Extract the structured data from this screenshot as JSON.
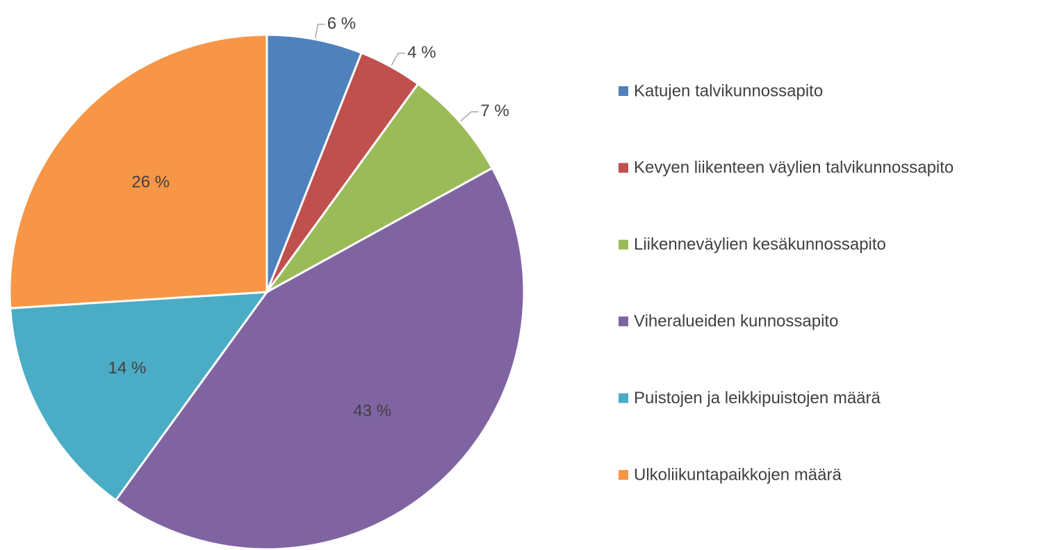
{
  "chart_data": {
    "type": "pie",
    "categories": [
      "Katujen talvikunnossapito",
      "Kevyen liikenteen väylien talvikunnossapito",
      "Liikenneväylien kesäkunnossapito",
      "Viheralueiden kunnossapito",
      "Puistojen ja leikkipuistojen määrä",
      "Ulkoliikuntapaikkojen määrä"
    ],
    "values": [
      6,
      4,
      7,
      43,
      14,
      26
    ],
    "value_labels": [
      "6 %",
      "4 %",
      "7 %",
      "43 %",
      "14 %",
      "26 %"
    ],
    "colors": [
      "#4f81bd",
      "#c0504d",
      "#9bbb59",
      "#8064a2",
      "#4bacc6",
      "#f79646"
    ],
    "legend": "right"
  }
}
